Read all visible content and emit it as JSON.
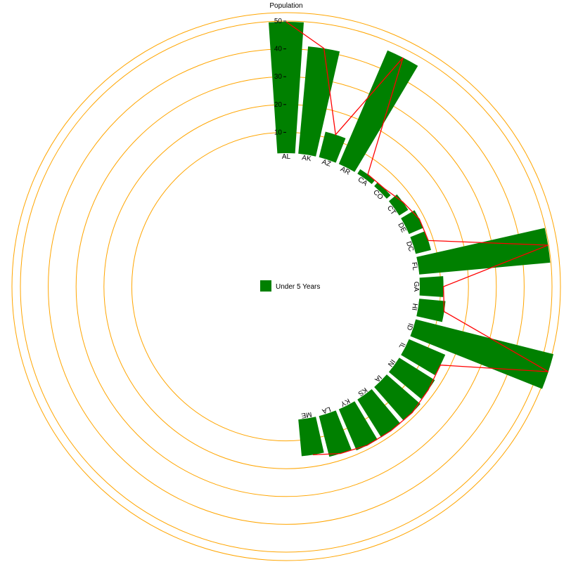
{
  "chart_data": {
    "type": "bar",
    "layout": "radial",
    "title": "Population",
    "categories": [
      "AL",
      "AK",
      "AZ",
      "AR",
      "CA",
      "CO",
      "CT",
      "DE",
      "DC",
      "FL",
      "GA",
      "HI",
      "ID",
      "IL",
      "IN",
      "IA",
      "KS",
      "KY",
      "LA",
      "ME"
    ],
    "series": [
      {
        "name": "Under 5 Years",
        "color": "#008000",
        "values": [
          50,
          41,
          10,
          47,
          2,
          2,
          4,
          6,
          6,
          50,
          9,
          10,
          60,
          15,
          16,
          17,
          17,
          17,
          16,
          14
        ]
      }
    ],
    "radial_axis": {
      "min": 0,
      "max": 50,
      "ticks": [
        10,
        20,
        30,
        40,
        50
      ]
    },
    "trend_line_color": "#ff0000",
    "grid_color": "#ffa500",
    "legend": {
      "position": "center"
    }
  }
}
